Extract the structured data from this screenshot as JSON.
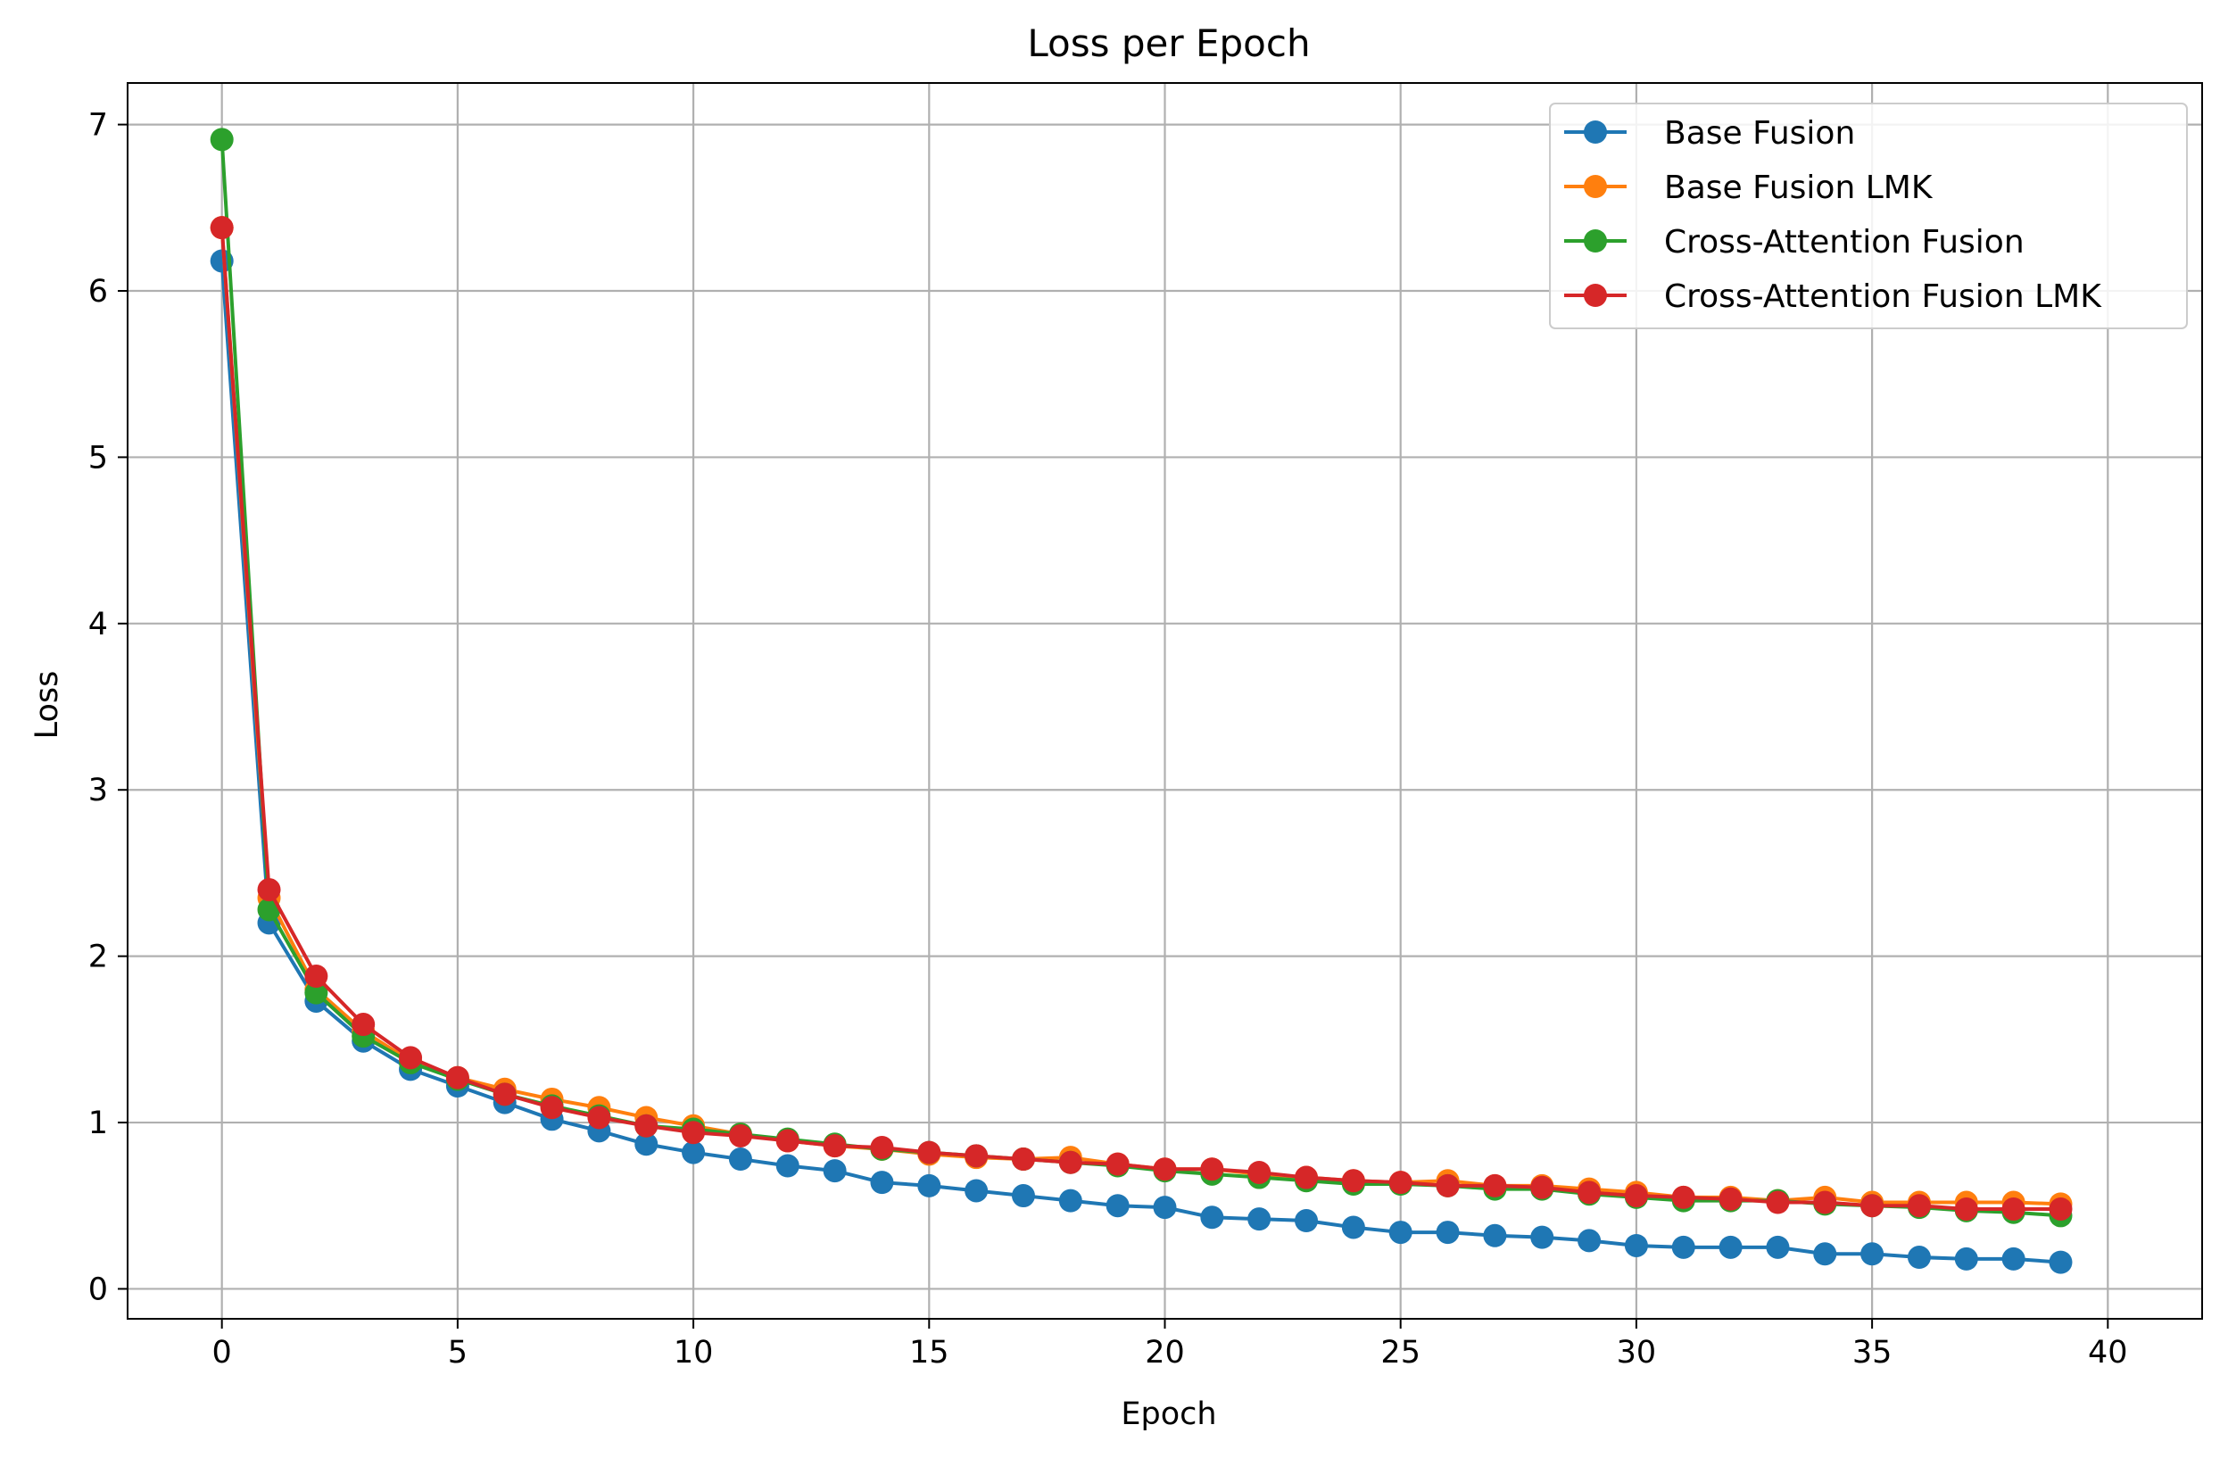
{
  "chart_data": {
    "type": "line",
    "title": "Loss per Epoch",
    "xlabel": "Epoch",
    "ylabel": "Loss",
    "xlim": [
      -2,
      42
    ],
    "ylim": [
      -0.18,
      7.25
    ],
    "xticks": [
      0,
      5,
      10,
      15,
      20,
      25,
      30,
      35,
      40
    ],
    "yticks": [
      0,
      1,
      2,
      3,
      4,
      5,
      6,
      7
    ],
    "grid": true,
    "legend_position": "top-right",
    "x": [
      0,
      1,
      2,
      3,
      4,
      5,
      6,
      7,
      8,
      9,
      10,
      11,
      12,
      13,
      14,
      15,
      16,
      17,
      18,
      19,
      20,
      21,
      22,
      23,
      24,
      25,
      26,
      27,
      28,
      29,
      30,
      31,
      32,
      33,
      34,
      35,
      36,
      37,
      38,
      39
    ],
    "series": [
      {
        "name": "Base Fusion",
        "color": "#1f77b4",
        "values": [
          6.18,
          2.2,
          1.73,
          1.49,
          1.32,
          1.22,
          1.12,
          1.02,
          0.95,
          0.87,
          0.82,
          0.78,
          0.74,
          0.71,
          0.64,
          0.62,
          0.59,
          0.56,
          0.53,
          0.5,
          0.49,
          0.43,
          0.42,
          0.41,
          0.37,
          0.34,
          0.34,
          0.32,
          0.31,
          0.29,
          0.26,
          0.25,
          0.25,
          0.25,
          0.21,
          0.21,
          0.19,
          0.18,
          0.18,
          0.16
        ]
      },
      {
        "name": "Base Fusion LMK",
        "color": "#ff7f0e",
        "values": [
          6.38,
          2.35,
          1.8,
          1.55,
          1.37,
          1.27,
          1.2,
          1.14,
          1.09,
          1.03,
          0.98,
          0.93,
          0.89,
          0.86,
          0.84,
          0.81,
          0.79,
          0.78,
          0.79,
          0.75,
          0.72,
          0.72,
          0.69,
          0.67,
          0.65,
          0.64,
          0.65,
          0.62,
          0.62,
          0.6,
          0.58,
          0.55,
          0.55,
          0.53,
          0.55,
          0.52,
          0.52,
          0.52,
          0.52,
          0.51
        ]
      },
      {
        "name": "Cross-Attention Fusion",
        "color": "#2ca02c",
        "values": [
          6.91,
          2.28,
          1.78,
          1.52,
          1.36,
          1.26,
          1.17,
          1.1,
          1.04,
          0.98,
          0.96,
          0.93,
          0.9,
          0.87,
          0.84,
          0.82,
          0.8,
          0.78,
          0.76,
          0.74,
          0.71,
          0.69,
          0.67,
          0.65,
          0.63,
          0.63,
          0.62,
          0.6,
          0.6,
          0.57,
          0.55,
          0.53,
          0.53,
          0.53,
          0.51,
          0.5,
          0.49,
          0.47,
          0.46,
          0.44
        ]
      },
      {
        "name": "Cross-Attention Fusion LMK",
        "color": "#d62728",
        "values": [
          6.38,
          2.4,
          1.88,
          1.59,
          1.39,
          1.27,
          1.17,
          1.09,
          1.03,
          0.98,
          0.94,
          0.92,
          0.89,
          0.86,
          0.85,
          0.82,
          0.8,
          0.78,
          0.76,
          0.75,
          0.72,
          0.72,
          0.7,
          0.67,
          0.65,
          0.64,
          0.62,
          0.62,
          0.61,
          0.58,
          0.56,
          0.55,
          0.54,
          0.52,
          0.52,
          0.5,
          0.5,
          0.48,
          0.48,
          0.48
        ]
      }
    ]
  }
}
